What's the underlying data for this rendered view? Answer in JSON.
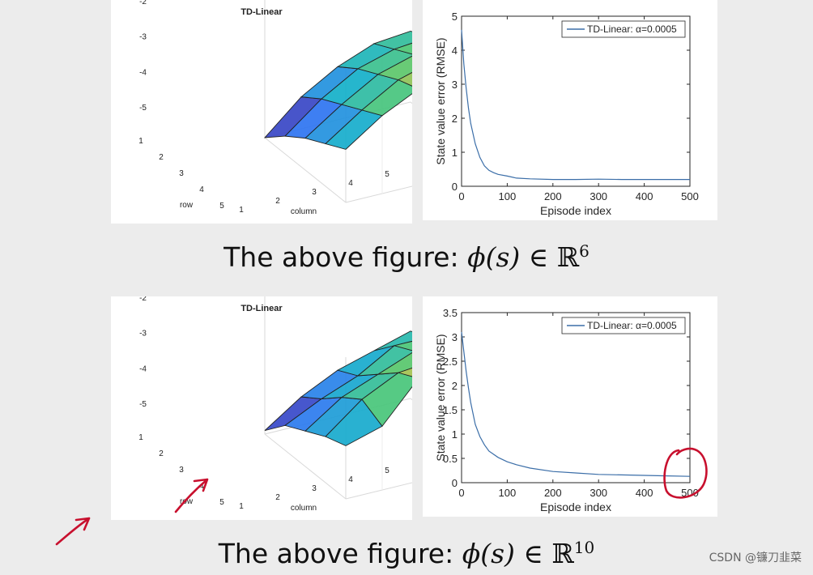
{
  "captions": [
    {
      "text": "The above figure:",
      "math": "ϕ(s) ∈ ",
      "bb": "ℝ",
      "sup": "6"
    },
    {
      "text": "The above figure:",
      "math": "ϕ(s) ∈ ",
      "bb": "ℝ",
      "sup": "10"
    }
  ],
  "watermark": "CSDN @镰刀韭菜",
  "colors": {
    "line": "#3b6ea8",
    "annotation": "#c8102e",
    "grid": "#d9d9d9"
  },
  "chart_data": [
    {
      "type": "surface",
      "title": "TD-Linear",
      "xlabel": "column",
      "ylabel": "row",
      "x_ticks": [
        "1",
        "2",
        "3",
        "4",
        "5"
      ],
      "y_ticks": [
        "1",
        "2",
        "3",
        "4",
        "5"
      ],
      "z_ticks": [
        "-2",
        "-3",
        "-4",
        "-5"
      ],
      "zlim": [
        -5.5,
        -1.5
      ],
      "grid": true,
      "z": [
        [
          -4.0,
          -3.3,
          -2.8,
          -2.5,
          -2.4
        ],
        [
          -4.3,
          -3.6,
          -3.0,
          -2.7,
          -2.6
        ],
        [
          -4.6,
          -3.9,
          -3.3,
          -3.0,
          -2.9
        ],
        [
          -5.0,
          -4.2,
          -3.6,
          -3.3,
          -3.2
        ],
        [
          -5.5,
          -4.6,
          -4.0,
          -3.6,
          -3.5
        ]
      ]
    },
    {
      "type": "line",
      "xlabel": "Episode index",
      "ylabel": "State value error (RMSE)",
      "xlim": [
        0,
        500
      ],
      "ylim": [
        0,
        5
      ],
      "x_ticks": [
        "0",
        "100",
        "200",
        "300",
        "400",
        "500"
      ],
      "y_ticks": [
        "0",
        "1",
        "2",
        "3",
        "4",
        "5"
      ],
      "legend": "TD-Linear: α=0.0005",
      "legend_position": "top-right",
      "grid": false,
      "series": [
        {
          "name": "TD-Linear: α=0.0005",
          "x": [
            0,
            5,
            10,
            15,
            20,
            30,
            40,
            50,
            60,
            70,
            80,
            100,
            120,
            150,
            200,
            250,
            300,
            350,
            400,
            450,
            500
          ],
          "y": [
            4.6,
            3.6,
            2.9,
            2.3,
            1.85,
            1.25,
            0.85,
            0.6,
            0.47,
            0.4,
            0.35,
            0.3,
            0.24,
            0.22,
            0.2,
            0.2,
            0.21,
            0.2,
            0.2,
            0.2,
            0.2
          ]
        }
      ]
    },
    {
      "type": "surface",
      "title": "TD-Linear",
      "xlabel": "column",
      "ylabel": "row",
      "x_ticks": [
        "1",
        "2",
        "3",
        "4",
        "5"
      ],
      "y_ticks": [
        "1",
        "2",
        "3",
        "4",
        "5"
      ],
      "z_ticks": [
        "-2",
        "-3",
        "-4",
        "-5"
      ],
      "zlim": [
        -5.5,
        -1.5
      ],
      "grid": true,
      "z": [
        [
          -4.0,
          -3.7,
          -2.6,
          -2.3,
          -2.4
        ],
        [
          -4.2,
          -3.4,
          -2.9,
          -2.8,
          -3.0
        ],
        [
          -4.5,
          -3.8,
          -3.4,
          -3.0,
          -2.9
        ],
        [
          -4.8,
          -4.3,
          -3.9,
          -3.3,
          -3.3
        ],
        [
          -5.4,
          -4.7,
          -4.2,
          -3.9,
          -3.6
        ]
      ]
    },
    {
      "type": "line",
      "xlabel": "Episode index",
      "ylabel": "State value error (RMSE)",
      "xlim": [
        0,
        500
      ],
      "ylim": [
        0,
        3.5
      ],
      "x_ticks": [
        "0",
        "100",
        "200",
        "300",
        "400",
        "500"
      ],
      "y_ticks": [
        "0",
        "0.5",
        "1",
        "1.5",
        "2",
        "2.5",
        "3",
        "3.5"
      ],
      "legend": "TD-Linear: α=0.0005",
      "legend_position": "top-right",
      "grid": false,
      "series": [
        {
          "name": "TD-Linear: α=0.0005",
          "x": [
            0,
            5,
            10,
            15,
            20,
            30,
            40,
            50,
            60,
            80,
            100,
            120,
            150,
            200,
            250,
            300,
            350,
            400,
            450,
            500
          ],
          "y": [
            3.1,
            2.7,
            2.3,
            1.95,
            1.65,
            1.2,
            0.95,
            0.78,
            0.65,
            0.52,
            0.43,
            0.37,
            0.3,
            0.23,
            0.2,
            0.17,
            0.16,
            0.15,
            0.14,
            0.13
          ]
        }
      ]
    }
  ]
}
